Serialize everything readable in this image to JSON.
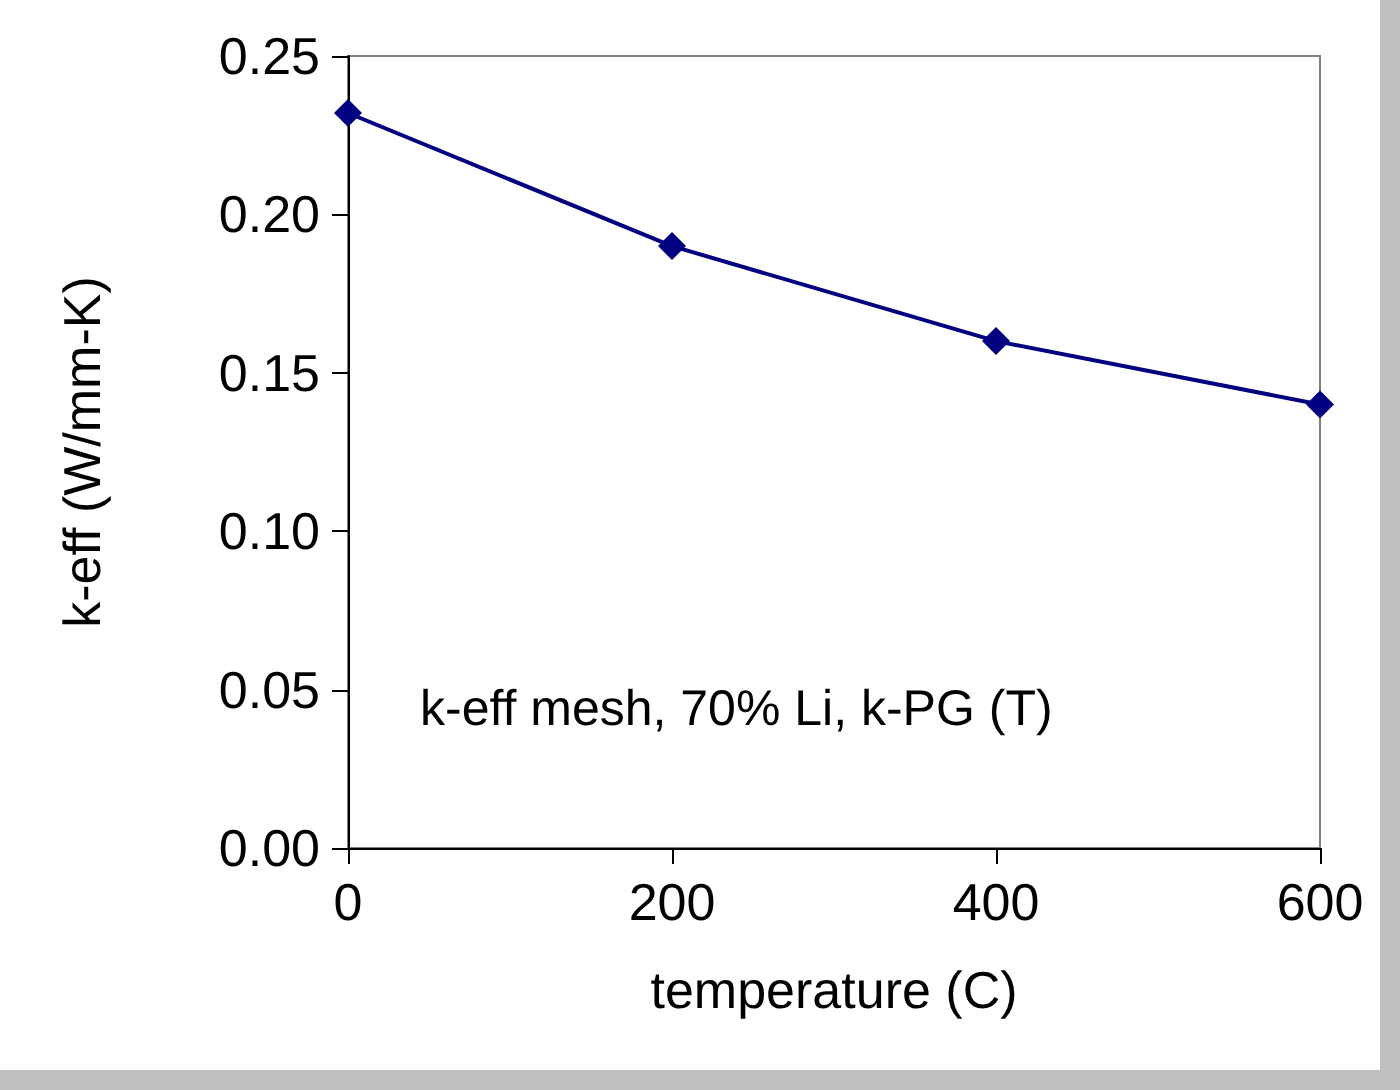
{
  "chart_data": {
    "type": "line",
    "xlabel": "temperature (C)",
    "ylabel": "k-eff (W/mm-K)",
    "x": [
      0,
      200,
      400,
      600
    ],
    "series": [
      {
        "color": "#000080",
        "values": [
          0.232,
          0.19,
          0.16,
          0.14
        ]
      }
    ],
    "xlim": [
      0,
      600
    ],
    "xticks": [
      0,
      200,
      400,
      600
    ],
    "ylim": [
      0,
      0.25
    ],
    "yticks": [
      {
        "value": 0,
        "label": "0.00"
      },
      {
        "value": 0.05,
        "label": "0.05"
      },
      {
        "value": 0.1,
        "label": "0.10"
      },
      {
        "value": 0.15,
        "label": "0.15"
      },
      {
        "value": 0.2,
        "label": "0.20"
      },
      {
        "value": 0.25,
        "label": "0.25"
      }
    ],
    "marker": "diamond",
    "grid": false,
    "annotations": [
      "k-eff mesh, 70% Li, k-PG (T)"
    ]
  }
}
